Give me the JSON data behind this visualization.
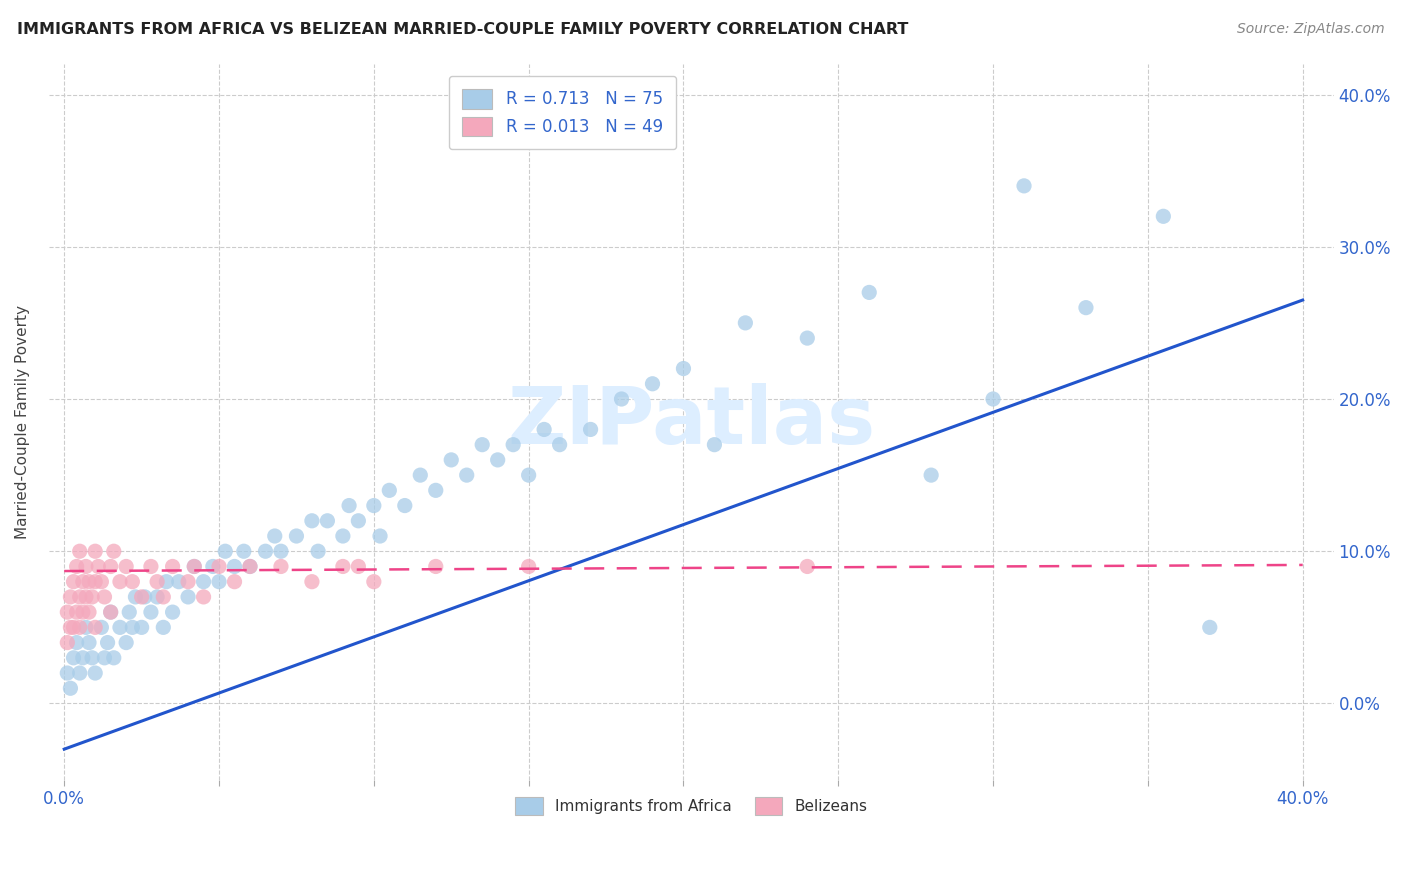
{
  "title": "IMMIGRANTS FROM AFRICA VS BELIZEAN MARRIED-COUPLE FAMILY POVERTY CORRELATION CHART",
  "source": "Source: ZipAtlas.com",
  "legend_label1": "Immigrants from Africa",
  "legend_label2": "Belizeans",
  "r1": "0.713",
  "n1": "75",
  "r2": "0.013",
  "n2": "49",
  "blue_color": "#a8cce8",
  "pink_color": "#f4a8bc",
  "blue_line_color": "#2255cc",
  "pink_line_color": "#ee4488",
  "watermark": "ZIPatlas",
  "xlim": [
    0.0,
    0.4
  ],
  "ylim": [
    -0.05,
    0.42
  ],
  "africa_x": [
    0.001,
    0.002,
    0.003,
    0.004,
    0.005,
    0.006,
    0.007,
    0.008,
    0.009,
    0.01,
    0.012,
    0.013,
    0.014,
    0.015,
    0.016,
    0.018,
    0.02,
    0.021,
    0.022,
    0.023,
    0.025,
    0.026,
    0.028,
    0.03,
    0.032,
    0.033,
    0.035,
    0.037,
    0.04,
    0.042,
    0.045,
    0.048,
    0.05,
    0.052,
    0.055,
    0.058,
    0.06,
    0.065,
    0.068,
    0.07,
    0.075,
    0.08,
    0.082,
    0.085,
    0.09,
    0.092,
    0.095,
    0.1,
    0.102,
    0.105,
    0.11,
    0.115,
    0.12,
    0.125,
    0.13,
    0.135,
    0.14,
    0.145,
    0.15,
    0.155,
    0.16,
    0.17,
    0.18,
    0.19,
    0.2,
    0.21,
    0.22,
    0.24,
    0.26,
    0.28,
    0.3,
    0.31,
    0.33,
    0.355,
    0.37
  ],
  "africa_y": [
    0.02,
    0.01,
    0.03,
    0.04,
    0.02,
    0.03,
    0.05,
    0.04,
    0.03,
    0.02,
    0.05,
    0.03,
    0.04,
    0.06,
    0.03,
    0.05,
    0.04,
    0.06,
    0.05,
    0.07,
    0.05,
    0.07,
    0.06,
    0.07,
    0.05,
    0.08,
    0.06,
    0.08,
    0.07,
    0.09,
    0.08,
    0.09,
    0.08,
    0.1,
    0.09,
    0.1,
    0.09,
    0.1,
    0.11,
    0.1,
    0.11,
    0.12,
    0.1,
    0.12,
    0.11,
    0.13,
    0.12,
    0.13,
    0.11,
    0.14,
    0.13,
    0.15,
    0.14,
    0.16,
    0.15,
    0.17,
    0.16,
    0.17,
    0.15,
    0.18,
    0.17,
    0.18,
    0.2,
    0.21,
    0.22,
    0.17,
    0.25,
    0.24,
    0.27,
    0.15,
    0.2,
    0.34,
    0.26,
    0.32,
    0.05
  ],
  "belizean_x": [
    0.001,
    0.001,
    0.002,
    0.002,
    0.003,
    0.003,
    0.004,
    0.004,
    0.005,
    0.005,
    0.005,
    0.006,
    0.006,
    0.007,
    0.007,
    0.008,
    0.008,
    0.009,
    0.01,
    0.01,
    0.01,
    0.011,
    0.012,
    0.013,
    0.015,
    0.015,
    0.016,
    0.018,
    0.02,
    0.022,
    0.025,
    0.028,
    0.03,
    0.032,
    0.035,
    0.04,
    0.042,
    0.045,
    0.05,
    0.055,
    0.06,
    0.07,
    0.08,
    0.09,
    0.095,
    0.1,
    0.12,
    0.15,
    0.24
  ],
  "belizean_y": [
    0.04,
    0.06,
    0.05,
    0.07,
    0.05,
    0.08,
    0.06,
    0.09,
    0.05,
    0.07,
    0.1,
    0.06,
    0.08,
    0.07,
    0.09,
    0.06,
    0.08,
    0.07,
    0.05,
    0.08,
    0.1,
    0.09,
    0.08,
    0.07,
    0.06,
    0.09,
    0.1,
    0.08,
    0.09,
    0.08,
    0.07,
    0.09,
    0.08,
    0.07,
    0.09,
    0.08,
    0.09,
    0.07,
    0.09,
    0.08,
    0.09,
    0.09,
    0.08,
    0.09,
    0.09,
    0.08,
    0.09,
    0.09,
    0.09
  ],
  "africa_line_x0": 0.0,
  "africa_line_y0": -0.03,
  "africa_line_x1": 0.4,
  "africa_line_y1": 0.265,
  "belizean_line_x0": 0.0,
  "belizean_line_y0": 0.087,
  "belizean_line_x1": 0.4,
  "belizean_line_y1": 0.091
}
